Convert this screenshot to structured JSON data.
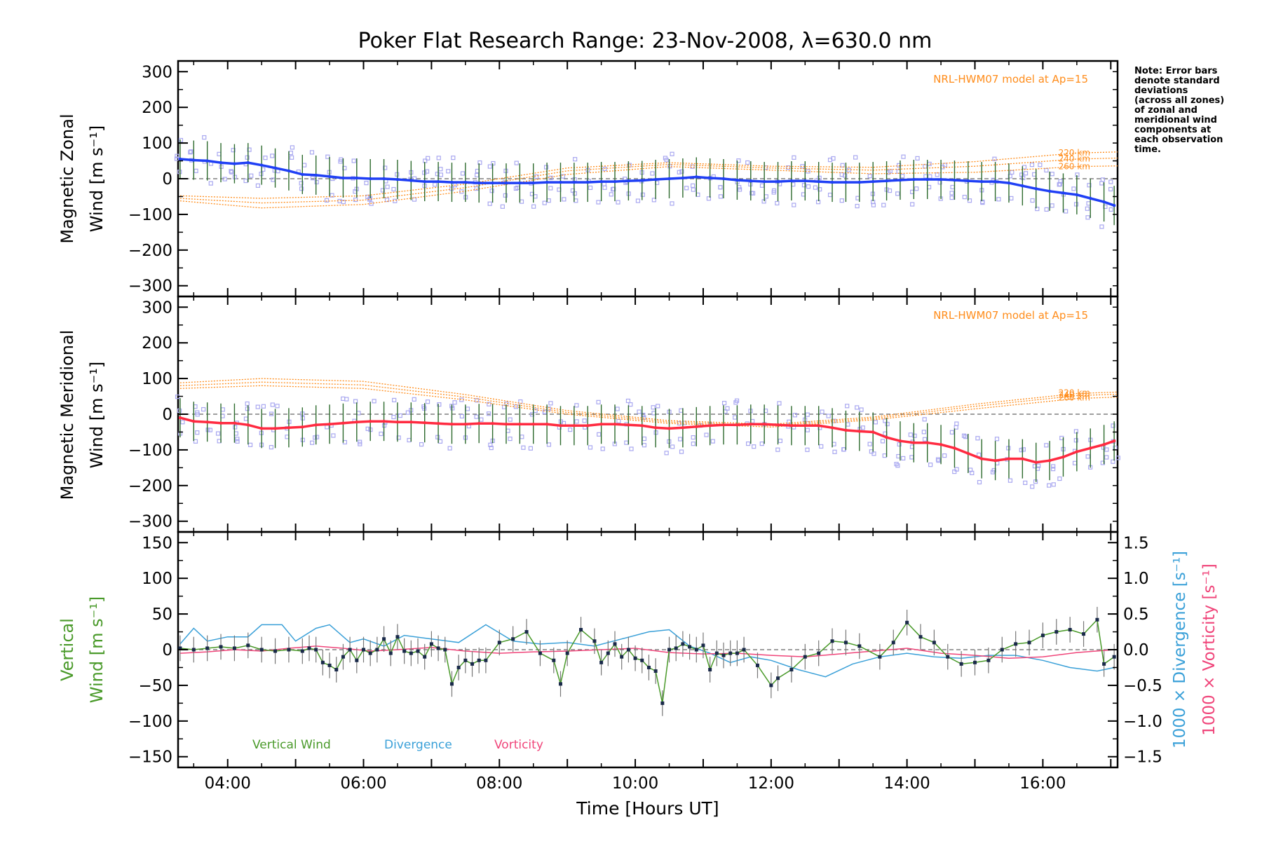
{
  "note": [
    "Note: Error bars",
    "denote standard",
    "deviations",
    "(across all zones)",
    "of zonal and",
    "meridional wind",
    "components at",
    "each observation",
    "time."
  ],
  "chart_data": [
    {
      "type": "line",
      "panel": "zonal",
      "title": "Poker Flat Research Range: 23-Nov-2008, λ=630.0 nm",
      "ylabel": [
        "Magnetic Zonal",
        "Wind [m s⁻¹]"
      ],
      "ylim": [
        -330,
        330
      ],
      "yticks": [
        300,
        200,
        100,
        0,
        -100,
        -200,
        -300
      ],
      "xlim": [
        3.27,
        17.1
      ],
      "model_label": "NRL-HWM07 model at Ap=15",
      "model_altitudes": [
        "220 km",
        "240 km",
        "260 km"
      ],
      "colors": {
        "mean": "#1f3ff5",
        "model": "#ff8c1a",
        "scatter": "#a9a8f0",
        "errorbar": "#2e6b2e"
      },
      "series": [
        {
          "x": [
            3.3,
            3.5,
            3.7,
            3.9,
            4.1,
            4.3,
            4.5,
            4.7,
            4.9,
            5.1,
            5.3,
            5.5,
            5.7,
            5.9,
            6.1,
            6.3,
            6.5,
            6.7,
            6.9,
            7.1,
            7.3,
            7.5,
            7.7,
            7.9,
            8.1,
            8.3,
            8.5,
            8.7,
            8.9,
            9.1,
            9.3,
            9.5,
            9.7,
            9.9,
            10.1,
            10.3,
            10.5,
            10.7,
            10.9,
            11.1,
            11.3,
            11.5,
            11.7,
            11.9,
            12.1,
            12.3,
            12.5,
            12.7,
            12.9,
            13.1,
            13.3,
            13.5,
            13.7,
            13.9,
            14.1,
            14.3,
            14.5,
            14.7,
            14.9,
            15.1,
            15.3,
            15.5,
            15.7,
            15.9,
            16.1,
            16.3,
            16.5,
            16.7,
            16.9,
            17.05
          ],
          "values": [
            55,
            52,
            50,
            45,
            42,
            45,
            38,
            30,
            22,
            12,
            10,
            6,
            2,
            2,
            0,
            0,
            -2,
            -5,
            -8,
            -8,
            -10,
            -10,
            -12,
            -12,
            -12,
            -12,
            -12,
            -10,
            -10,
            -10,
            -10,
            -8,
            -8,
            -6,
            -5,
            -2,
            0,
            2,
            5,
            2,
            0,
            -4,
            -6,
            -8,
            -8,
            -6,
            -6,
            -8,
            -10,
            -10,
            -10,
            -8,
            -6,
            -4,
            -2,
            -2,
            -2,
            -4,
            -6,
            -8,
            -8,
            -12,
            -20,
            -28,
            -35,
            -40,
            -45,
            -55,
            -65,
            -75
          ]
        }
      ],
      "model_curves": [
        {
          "name": "220 km",
          "x": [
            3.3,
            4.5,
            6.0,
            7.5,
            9.0,
            10.5,
            12.0,
            13.5,
            15.0,
            16.5,
            17.1
          ],
          "values": [
            -48,
            -55,
            -48,
            -15,
            30,
            45,
            35,
            32,
            48,
            72,
            75
          ]
        },
        {
          "name": "240 km",
          "x": [
            3.3,
            4.5,
            6.0,
            7.5,
            9.0,
            10.5,
            12.0,
            13.5,
            15.0,
            16.5,
            17.1
          ],
          "values": [
            -55,
            -68,
            -60,
            -25,
            22,
            40,
            30,
            24,
            35,
            55,
            58
          ]
        },
        {
          "name": "260 km",
          "x": [
            3.3,
            4.5,
            6.0,
            7.5,
            9.0,
            10.5,
            12.0,
            13.5,
            15.0,
            16.5,
            17.1
          ],
          "values": [
            -62,
            -82,
            -72,
            -35,
            12,
            34,
            24,
            14,
            18,
            34,
            36
          ]
        }
      ]
    },
    {
      "type": "line",
      "panel": "meridional",
      "ylabel": [
        "Magnetic Meridional",
        "Wind [m s⁻¹]"
      ],
      "ylim": [
        -330,
        330
      ],
      "yticks": [
        300,
        200,
        100,
        0,
        -100,
        -200,
        -300
      ],
      "xlim": [
        3.27,
        17.1
      ],
      "model_label": "NRL-HWM07 model at Ap=15",
      "model_altitudes": [
        "220 km",
        "240 km",
        "260 km"
      ],
      "colors": {
        "mean": "#ff2a40",
        "model": "#ff8c1a",
        "scatter": "#a9a8f0",
        "errorbar": "#2e6b2e"
      },
      "series": [
        {
          "x": [
            3.3,
            3.5,
            3.7,
            3.9,
            4.1,
            4.3,
            4.5,
            4.7,
            4.9,
            5.1,
            5.3,
            5.5,
            5.7,
            5.9,
            6.1,
            6.3,
            6.5,
            6.7,
            6.9,
            7.1,
            7.3,
            7.5,
            7.7,
            7.9,
            8.1,
            8.3,
            8.5,
            8.7,
            8.9,
            9.1,
            9.3,
            9.5,
            9.7,
            9.9,
            10.1,
            10.3,
            10.5,
            10.7,
            10.9,
            11.1,
            11.3,
            11.5,
            11.7,
            11.9,
            12.1,
            12.3,
            12.5,
            12.7,
            12.9,
            13.1,
            13.3,
            13.5,
            13.7,
            13.9,
            14.1,
            14.3,
            14.5,
            14.7,
            14.9,
            15.1,
            15.3,
            15.5,
            15.7,
            15.9,
            16.1,
            16.3,
            16.5,
            16.7,
            16.9,
            17.05
          ],
          "values": [
            -10,
            -20,
            -22,
            -25,
            -25,
            -30,
            -40,
            -40,
            -38,
            -36,
            -30,
            -28,
            -25,
            -22,
            -20,
            -20,
            -22,
            -22,
            -24,
            -26,
            -28,
            -28,
            -26,
            -26,
            -28,
            -28,
            -28,
            -28,
            -32,
            -32,
            -32,
            -28,
            -28,
            -30,
            -32,
            -38,
            -40,
            -38,
            -35,
            -32,
            -30,
            -30,
            -28,
            -28,
            -30,
            -32,
            -32,
            -32,
            -38,
            -45,
            -48,
            -50,
            -65,
            -75,
            -80,
            -80,
            -85,
            -95,
            -110,
            -125,
            -130,
            -125,
            -125,
            -135,
            -130,
            -120,
            -105,
            -95,
            -85,
            -75
          ]
        }
      ],
      "model_curves": [
        {
          "name": "220 km",
          "x": [
            3.3,
            4.5,
            6.0,
            7.5,
            9.0,
            10.5,
            12.0,
            13.5,
            15.0,
            16.5,
            17.1
          ],
          "values": [
            88,
            100,
            92,
            55,
            10,
            -18,
            -28,
            -8,
            28,
            58,
            62
          ]
        },
        {
          "name": "240 km",
          "x": [
            3.3,
            4.5,
            6.0,
            7.5,
            9.0,
            10.5,
            12.0,
            13.5,
            15.0,
            16.5,
            17.1
          ],
          "values": [
            80,
            90,
            82,
            48,
            5,
            -22,
            -32,
            -12,
            22,
            52,
            56
          ]
        },
        {
          "name": "260 km",
          "x": [
            3.3,
            4.5,
            6.0,
            7.5,
            9.0,
            10.5,
            12.0,
            13.5,
            15.0,
            16.5,
            17.1
          ],
          "values": [
            72,
            80,
            72,
            40,
            0,
            -26,
            -36,
            -16,
            15,
            44,
            48
          ]
        }
      ]
    },
    {
      "type": "line",
      "panel": "vertical",
      "ylabel": [
        "Vertical",
        "Wind [m s⁻¹]"
      ],
      "ylim": [
        -165,
        165
      ],
      "yticks": [
        150,
        100,
        50,
        0,
        -50,
        -100,
        -150
      ],
      "y2lim": [
        -1.65,
        1.65
      ],
      "y2ticks": [
        "1.5",
        "1.0",
        "0.5",
        "0.0",
        "−0.5",
        "−1.0",
        "−1.5"
      ],
      "y2label_divergence": "1000 × Divergence [s⁻¹]",
      "y2label_vorticity": "1000 × Vorticity [s⁻¹]",
      "xlim": [
        3.27,
        17.1
      ],
      "xlabel": "Time [Hours UT]",
      "xticks": [
        "04:00",
        "06:00",
        "08:00",
        "10:00",
        "12:00",
        "14:00",
        "16:00"
      ],
      "legend": [
        "Vertical Wind",
        "Divergence",
        "Vorticity"
      ],
      "colors": {
        "vertical": "#4a9a2a",
        "divergence": "#3aa0d8",
        "vorticity": "#f0457a",
        "errorbar": "#777777",
        "points": "#1a2a4a"
      },
      "series": [
        {
          "name": "Vertical Wind",
          "x": [
            3.3,
            3.5,
            3.7,
            3.9,
            4.1,
            4.3,
            4.5,
            4.7,
            4.9,
            5.1,
            5.2,
            5.3,
            5.4,
            5.5,
            5.6,
            5.7,
            5.8,
            5.9,
            6.0,
            6.1,
            6.2,
            6.3,
            6.4,
            6.5,
            6.6,
            6.7,
            6.8,
            6.9,
            7.0,
            7.1,
            7.2,
            7.3,
            7.4,
            7.5,
            7.6,
            7.7,
            7.8,
            8.0,
            8.2,
            8.4,
            8.6,
            8.8,
            8.9,
            9.0,
            9.2,
            9.4,
            9.5,
            9.6,
            9.7,
            9.8,
            9.9,
            10.0,
            10.1,
            10.2,
            10.3,
            10.4,
            10.5,
            10.6,
            10.7,
            10.8,
            10.9,
            11.0,
            11.1,
            11.2,
            11.3,
            11.4,
            11.5,
            11.6,
            11.8,
            12.0,
            12.1,
            12.3,
            12.5,
            12.7,
            12.9,
            13.1,
            13.3,
            13.6,
            13.8,
            14.0,
            14.2,
            14.4,
            14.6,
            14.8,
            15.0,
            15.2,
            15.4,
            15.6,
            15.8,
            16.0,
            16.2,
            16.4,
            16.6,
            16.8,
            16.9,
            17.05
          ],
          "values": [
            2,
            0,
            2,
            4,
            2,
            6,
            0,
            -2,
            0,
            -2,
            2,
            0,
            -18,
            -22,
            -28,
            -10,
            0,
            -15,
            0,
            -5,
            0,
            15,
            -5,
            18,
            -2,
            -5,
            -2,
            -10,
            8,
            2,
            0,
            -48,
            -25,
            -15,
            -20,
            -15,
            -15,
            10,
            15,
            25,
            -5,
            -15,
            -48,
            -5,
            28,
            12,
            -18,
            -5,
            8,
            -10,
            0,
            -12,
            -15,
            -25,
            -30,
            -75,
            0,
            2,
            8,
            4,
            0,
            6,
            -28,
            -5,
            -8,
            -5,
            -5,
            0,
            -22,
            -50,
            -40,
            -28,
            -10,
            -5,
            12,
            10,
            5,
            -10,
            10,
            38,
            18,
            10,
            -10,
            -20,
            -18,
            -15,
            0,
            8,
            10,
            20,
            25,
            28,
            22,
            42,
            -20,
            -10
          ]
        },
        {
          "name": "Divergence",
          "x": [
            3.3,
            3.5,
            3.7,
            4.0,
            4.3,
            4.5,
            4.8,
            5.0,
            5.3,
            5.5,
            5.8,
            6.0,
            6.3,
            6.6,
            7.0,
            7.4,
            7.8,
            8.2,
            8.6,
            9.0,
            9.4,
            9.8,
            10.2,
            10.5,
            10.8,
            11.1,
            11.4,
            11.7,
            12.0,
            12.4,
            12.8,
            13.2,
            13.6,
            14.0,
            14.4,
            14.8,
            15.2,
            15.6,
            16.0,
            16.4,
            16.8,
            17.05
          ],
          "values": [
            0.08,
            0.3,
            0.12,
            0.18,
            0.18,
            0.35,
            0.35,
            0.12,
            0.3,
            0.35,
            0.1,
            0.15,
            0.05,
            0.2,
            0.15,
            0.1,
            0.35,
            0.12,
            0.08,
            0.1,
            0.05,
            0.15,
            0.25,
            0.28,
            0.05,
            -0.05,
            -0.18,
            -0.1,
            -0.15,
            -0.28,
            -0.38,
            -0.2,
            -0.1,
            -0.05,
            -0.1,
            -0.12,
            -0.08,
            -0.08,
            -0.15,
            -0.25,
            -0.3,
            -0.25
          ]
        },
        {
          "name": "Vorticity",
          "x": [
            3.3,
            3.7,
            4.1,
            4.5,
            4.9,
            5.3,
            5.7,
            6.1,
            6.5,
            7.0,
            7.5,
            8.0,
            8.5,
            9.0,
            9.5,
            10.0,
            10.5,
            11.0,
            11.5,
            12.0,
            12.5,
            13.0,
            13.5,
            14.0,
            14.5,
            15.0,
            15.5,
            16.0,
            16.5,
            17.05
          ],
          "values": [
            -0.05,
            -0.03,
            0.0,
            -0.02,
            0.02,
            0.05,
            0.02,
            -0.02,
            0.0,
            0.03,
            -0.02,
            -0.05,
            -0.03,
            -0.02,
            0.0,
            0.02,
            -0.04,
            -0.06,
            -0.05,
            -0.08,
            -0.1,
            -0.06,
            -0.02,
            0.02,
            -0.05,
            -0.08,
            -0.12,
            -0.1,
            -0.04,
            0.0
          ]
        }
      ]
    }
  ]
}
